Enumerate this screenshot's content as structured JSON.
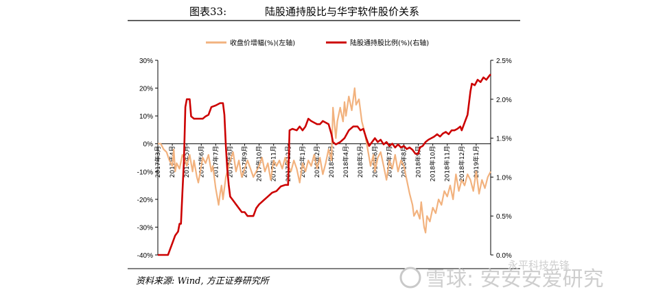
{
  "title": {
    "label": "图表33:",
    "text": "陆股通持股比与华宇软件股价关系"
  },
  "legend": {
    "placement": "top-center",
    "items": [
      {
        "name": "收盘价增幅(%)(左轴)",
        "color": "#f2b27e"
      },
      {
        "name": "陆股通持股比例(%)(右轴)",
        "color": "#cc0000"
      }
    ]
  },
  "source": "资料来源: Wind, 方正证券研究所",
  "watermark": {
    "brand": "雪球: 安安安爱研究",
    "secondary": "永平科技先锋"
  },
  "chart_data": {
    "type": "line",
    "title": "陆股通持股比与华宇软件股价关系",
    "x_categories": [
      "2017年3月",
      "2017年4月",
      "2017年5月",
      "2017年6月",
      "2017年7月",
      "2017年8月",
      "2017年9月",
      "2017年10月",
      "2017年11月",
      "2017年12月",
      "2018年1月",
      "2018年2月",
      "2018年3月",
      "2018年4月",
      "2018年5月",
      "2018年6月",
      "2018年7月",
      "2018年8月",
      "2018年9月",
      "2018年10月",
      "2018年11月",
      "2018年12月",
      "2019年1月"
    ],
    "y_left": {
      "label": "收盘价增幅(%)",
      "min": -40,
      "max": 30,
      "ticks": [
        "-40%",
        "-30%",
        "-20%",
        "-10%",
        "0%",
        "10%",
        "20%",
        "30%"
      ]
    },
    "y_right": {
      "label": "陆股通持股比例(%)",
      "min": 0,
      "max": 2.5,
      "ticks": [
        "0.0%",
        "0.5%",
        "1.0%",
        "1.5%",
        "2.0%",
        "2.5%"
      ]
    },
    "series": [
      {
        "name": "收盘价增幅(%)(左轴)",
        "axis": "left",
        "color": "#f2b27e",
        "points": [
          [
            0,
            0
          ],
          [
            0.2,
            0
          ],
          [
            0.4,
            -2
          ],
          [
            0.6,
            -3
          ],
          [
            0.8,
            -6
          ],
          [
            1.0,
            -8
          ],
          [
            1.1,
            -2
          ],
          [
            1.2,
            -10
          ],
          [
            1.3,
            -7
          ],
          [
            1.5,
            -9
          ],
          [
            1.7,
            -4
          ],
          [
            1.9,
            -6
          ],
          [
            2.0,
            -8
          ],
          [
            2.2,
            -4
          ],
          [
            2.4,
            -10
          ],
          [
            2.5,
            -6
          ],
          [
            2.7,
            -12
          ],
          [
            2.8,
            -14
          ],
          [
            3.0,
            -8
          ],
          [
            3.1,
            -5
          ],
          [
            3.3,
            -7
          ],
          [
            3.5,
            -4
          ],
          [
            3.7,
            -10
          ],
          [
            3.8,
            -8
          ],
          [
            4.0,
            -16
          ],
          [
            4.2,
            -22
          ],
          [
            4.3,
            -18
          ],
          [
            4.4,
            -15
          ],
          [
            4.5,
            -20
          ],
          [
            4.7,
            -12
          ],
          [
            4.9,
            -8
          ],
          [
            5.0,
            -6
          ],
          [
            5.2,
            -3
          ],
          [
            5.4,
            -10
          ],
          [
            5.6,
            -6
          ],
          [
            5.8,
            -12
          ],
          [
            6.0,
            -9
          ],
          [
            6.2,
            -6
          ],
          [
            6.4,
            -9
          ],
          [
            6.6,
            -12
          ],
          [
            6.8,
            -10
          ],
          [
            7.0,
            -8
          ],
          [
            7.2,
            -5
          ],
          [
            7.4,
            -10
          ],
          [
            7.6,
            -7
          ],
          [
            7.8,
            -13
          ],
          [
            8.0,
            -6
          ],
          [
            8.2,
            -8
          ],
          [
            8.4,
            -6
          ],
          [
            8.6,
            -9
          ],
          [
            8.8,
            -5
          ],
          [
            9.0,
            -8
          ],
          [
            9.2,
            -10
          ],
          [
            9.4,
            -6
          ],
          [
            9.6,
            -9
          ],
          [
            9.8,
            -14
          ],
          [
            10.0,
            -7
          ],
          [
            10.2,
            -10
          ],
          [
            10.4,
            -6
          ],
          [
            10.6,
            -8
          ],
          [
            10.8,
            -4
          ],
          [
            11.0,
            -9
          ],
          [
            11.2,
            -5
          ],
          [
            11.4,
            -11
          ],
          [
            11.6,
            -7
          ],
          [
            11.8,
            -2
          ],
          [
            12.0,
            -6
          ],
          [
            12.1,
            13
          ],
          [
            12.3,
            2
          ],
          [
            12.4,
            8
          ],
          [
            12.6,
            13
          ],
          [
            12.8,
            8
          ],
          [
            12.9,
            15
          ],
          [
            13.0,
            10
          ],
          [
            13.2,
            17
          ],
          [
            13.4,
            12
          ],
          [
            13.6,
            20
          ],
          [
            13.7,
            14
          ],
          [
            13.9,
            16
          ],
          [
            14.1,
            8
          ],
          [
            14.3,
            4
          ],
          [
            14.5,
            -2
          ],
          [
            14.7,
            -8
          ],
          [
            14.9,
            -4
          ],
          [
            15.0,
            -10
          ],
          [
            15.2,
            -5
          ],
          [
            15.4,
            -3
          ],
          [
            15.6,
            -8
          ],
          [
            15.8,
            -13
          ],
          [
            16.0,
            -6
          ],
          [
            16.2,
            -9
          ],
          [
            16.4,
            -4
          ],
          [
            16.6,
            -10
          ],
          [
            16.8,
            -6
          ],
          [
            17.0,
            -8
          ],
          [
            17.2,
            -13
          ],
          [
            17.4,
            -18
          ],
          [
            17.6,
            -22
          ],
          [
            17.7,
            -26
          ],
          [
            17.9,
            -24
          ],
          [
            18.1,
            -27
          ],
          [
            18.2,
            -21
          ],
          [
            18.4,
            -30
          ],
          [
            18.5,
            -32
          ],
          [
            18.6,
            -26
          ],
          [
            18.8,
            -28
          ],
          [
            19.0,
            -23
          ],
          [
            19.2,
            -25
          ],
          [
            19.4,
            -20
          ],
          [
            19.6,
            -22
          ],
          [
            19.8,
            -17
          ],
          [
            20.0,
            -19
          ],
          [
            20.2,
            -15
          ],
          [
            20.4,
            -20
          ],
          [
            20.6,
            -11
          ],
          [
            20.8,
            -17
          ],
          [
            21.0,
            -13
          ],
          [
            21.2,
            -15
          ],
          [
            21.4,
            -11
          ],
          [
            21.6,
            -13
          ],
          [
            21.8,
            -17
          ],
          [
            22.0,
            -10
          ],
          [
            22.2,
            -18
          ],
          [
            22.4,
            -13
          ],
          [
            22.6,
            -16
          ],
          [
            22.8,
            -12
          ],
          [
            23.0,
            -10
          ]
        ]
      },
      {
        "name": "陆股通持股比例(%)(右轴)",
        "axis": "right",
        "color": "#cc0000",
        "points": [
          [
            0,
            0.0
          ],
          [
            0.7,
            0.0
          ],
          [
            0.8,
            0.05
          ],
          [
            1.0,
            0.15
          ],
          [
            1.2,
            0.25
          ],
          [
            1.4,
            0.3
          ],
          [
            1.5,
            0.4
          ],
          [
            1.6,
            0.4
          ],
          [
            1.7,
            0.8
          ],
          [
            1.8,
            1.2
          ],
          [
            1.9,
            1.9
          ],
          [
            2.0,
            2.0
          ],
          [
            2.2,
            2.0
          ],
          [
            2.3,
            1.78
          ],
          [
            2.5,
            1.75
          ],
          [
            2.8,
            1.75
          ],
          [
            3.1,
            1.75
          ],
          [
            3.3,
            1.78
          ],
          [
            3.5,
            1.8
          ],
          [
            3.7,
            1.9
          ],
          [
            4.0,
            1.92
          ],
          [
            4.3,
            1.95
          ],
          [
            4.5,
            1.95
          ],
          [
            4.6,
            1.8
          ],
          [
            4.7,
            1.4
          ],
          [
            4.8,
            1.1
          ],
          [
            4.9,
            0.9
          ],
          [
            5.0,
            0.75
          ],
          [
            5.2,
            0.7
          ],
          [
            5.4,
            0.65
          ],
          [
            5.6,
            0.6
          ],
          [
            5.8,
            0.55
          ],
          [
            6.0,
            0.55
          ],
          [
            6.2,
            0.5
          ],
          [
            6.4,
            0.5
          ],
          [
            6.6,
            0.5
          ],
          [
            6.8,
            0.6
          ],
          [
            7.0,
            0.65
          ],
          [
            7.3,
            0.7
          ],
          [
            7.6,
            0.75
          ],
          [
            7.9,
            0.8
          ],
          [
            8.2,
            0.82
          ],
          [
            8.5,
            0.88
          ],
          [
            8.8,
            0.9
          ],
          [
            9.0,
            0.9
          ],
          [
            9.1,
            1.6
          ],
          [
            9.3,
            1.62
          ],
          [
            9.6,
            1.6
          ],
          [
            9.8,
            1.65
          ],
          [
            10.0,
            1.6
          ],
          [
            10.2,
            1.65
          ],
          [
            10.4,
            1.75
          ],
          [
            10.6,
            1.72
          ],
          [
            10.8,
            1.7
          ],
          [
            11.0,
            1.68
          ],
          [
            11.2,
            1.68
          ],
          [
            11.4,
            1.72
          ],
          [
            11.6,
            1.7
          ],
          [
            11.8,
            1.68
          ],
          [
            12.0,
            1.55
          ],
          [
            12.1,
            1.45
          ],
          [
            12.3,
            1.42
          ],
          [
            12.6,
            1.45
          ],
          [
            12.9,
            1.5
          ],
          [
            13.2,
            1.6
          ],
          [
            13.5,
            1.65
          ],
          [
            13.8,
            1.65
          ],
          [
            14.0,
            1.6
          ],
          [
            14.2,
            1.62
          ],
          [
            14.4,
            1.5
          ],
          [
            14.5,
            1.45
          ],
          [
            14.6,
            1.4
          ],
          [
            14.8,
            1.45
          ],
          [
            15.0,
            1.5
          ],
          [
            15.2,
            1.45
          ],
          [
            15.4,
            1.48
          ],
          [
            15.6,
            1.42
          ],
          [
            15.8,
            1.45
          ],
          [
            16.0,
            1.4
          ],
          [
            16.2,
            1.43
          ],
          [
            16.4,
            1.38
          ],
          [
            16.6,
            1.42
          ],
          [
            16.8,
            1.38
          ],
          [
            17.0,
            1.4
          ],
          [
            17.2,
            1.36
          ],
          [
            17.4,
            1.38
          ],
          [
            17.6,
            1.35
          ],
          [
            17.8,
            1.3
          ],
          [
            18.0,
            1.3
          ],
          [
            18.1,
            1.38
          ],
          [
            18.3,
            1.4
          ],
          [
            18.5,
            1.45
          ],
          [
            18.7,
            1.48
          ],
          [
            18.9,
            1.5
          ],
          [
            19.1,
            1.52
          ],
          [
            19.3,
            1.55
          ],
          [
            19.5,
            1.52
          ],
          [
            19.7,
            1.56
          ],
          [
            19.9,
            1.58
          ],
          [
            20.1,
            1.55
          ],
          [
            20.3,
            1.6
          ],
          [
            20.5,
            1.6
          ],
          [
            20.7,
            1.62
          ],
          [
            20.9,
            1.65
          ],
          [
            21.0,
            1.6
          ],
          [
            21.2,
            1.7
          ],
          [
            21.4,
            1.8
          ],
          [
            21.5,
            1.95
          ],
          [
            21.6,
            2.1
          ],
          [
            21.7,
            2.2
          ],
          [
            21.9,
            2.18
          ],
          [
            22.1,
            2.25
          ],
          [
            22.3,
            2.22
          ],
          [
            22.5,
            2.28
          ],
          [
            22.7,
            2.25
          ],
          [
            22.9,
            2.3
          ],
          [
            23.0,
            2.32
          ]
        ]
      }
    ]
  }
}
